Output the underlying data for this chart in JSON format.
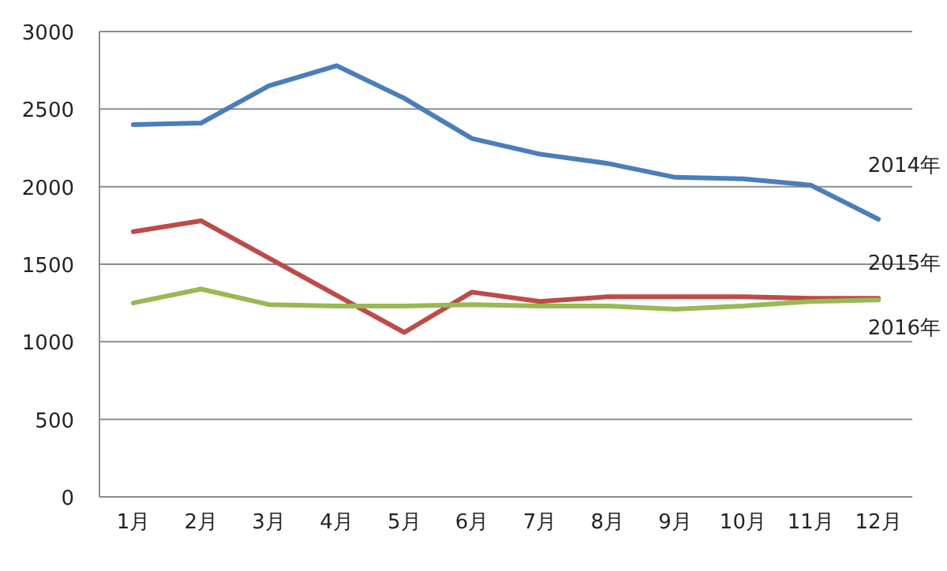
{
  "chart_data": {
    "type": "line",
    "categories": [
      "1月",
      "2月",
      "3月",
      "4月",
      "5月",
      "6月",
      "7月",
      "8月",
      "9月",
      "10月",
      "11月",
      "12月"
    ],
    "series": [
      {
        "name": "2014年",
        "color": "#4a7ebb",
        "values": [
          2400,
          2410,
          2650,
          2780,
          2570,
          2310,
          2210,
          2150,
          2060,
          2050,
          2010,
          1790
        ]
      },
      {
        "name": "2015年",
        "color": "#be4b48",
        "values": [
          1710,
          1780,
          1540,
          1300,
          1060,
          1320,
          1260,
          1290,
          1290,
          1290,
          1280,
          1280
        ]
      },
      {
        "name": "2016年",
        "color": "#98b954",
        "values": [
          1250,
          1340,
          1240,
          1230,
          1230,
          1240,
          1230,
          1230,
          1210,
          1230,
          1260,
          1270
        ]
      }
    ],
    "ylim": [
      0,
      3000
    ],
    "yticks": [
      0,
      500,
      1000,
      1500,
      2000,
      2500,
      3000
    ],
    "grid": "y",
    "marker": "none",
    "line_style": "solid"
  }
}
